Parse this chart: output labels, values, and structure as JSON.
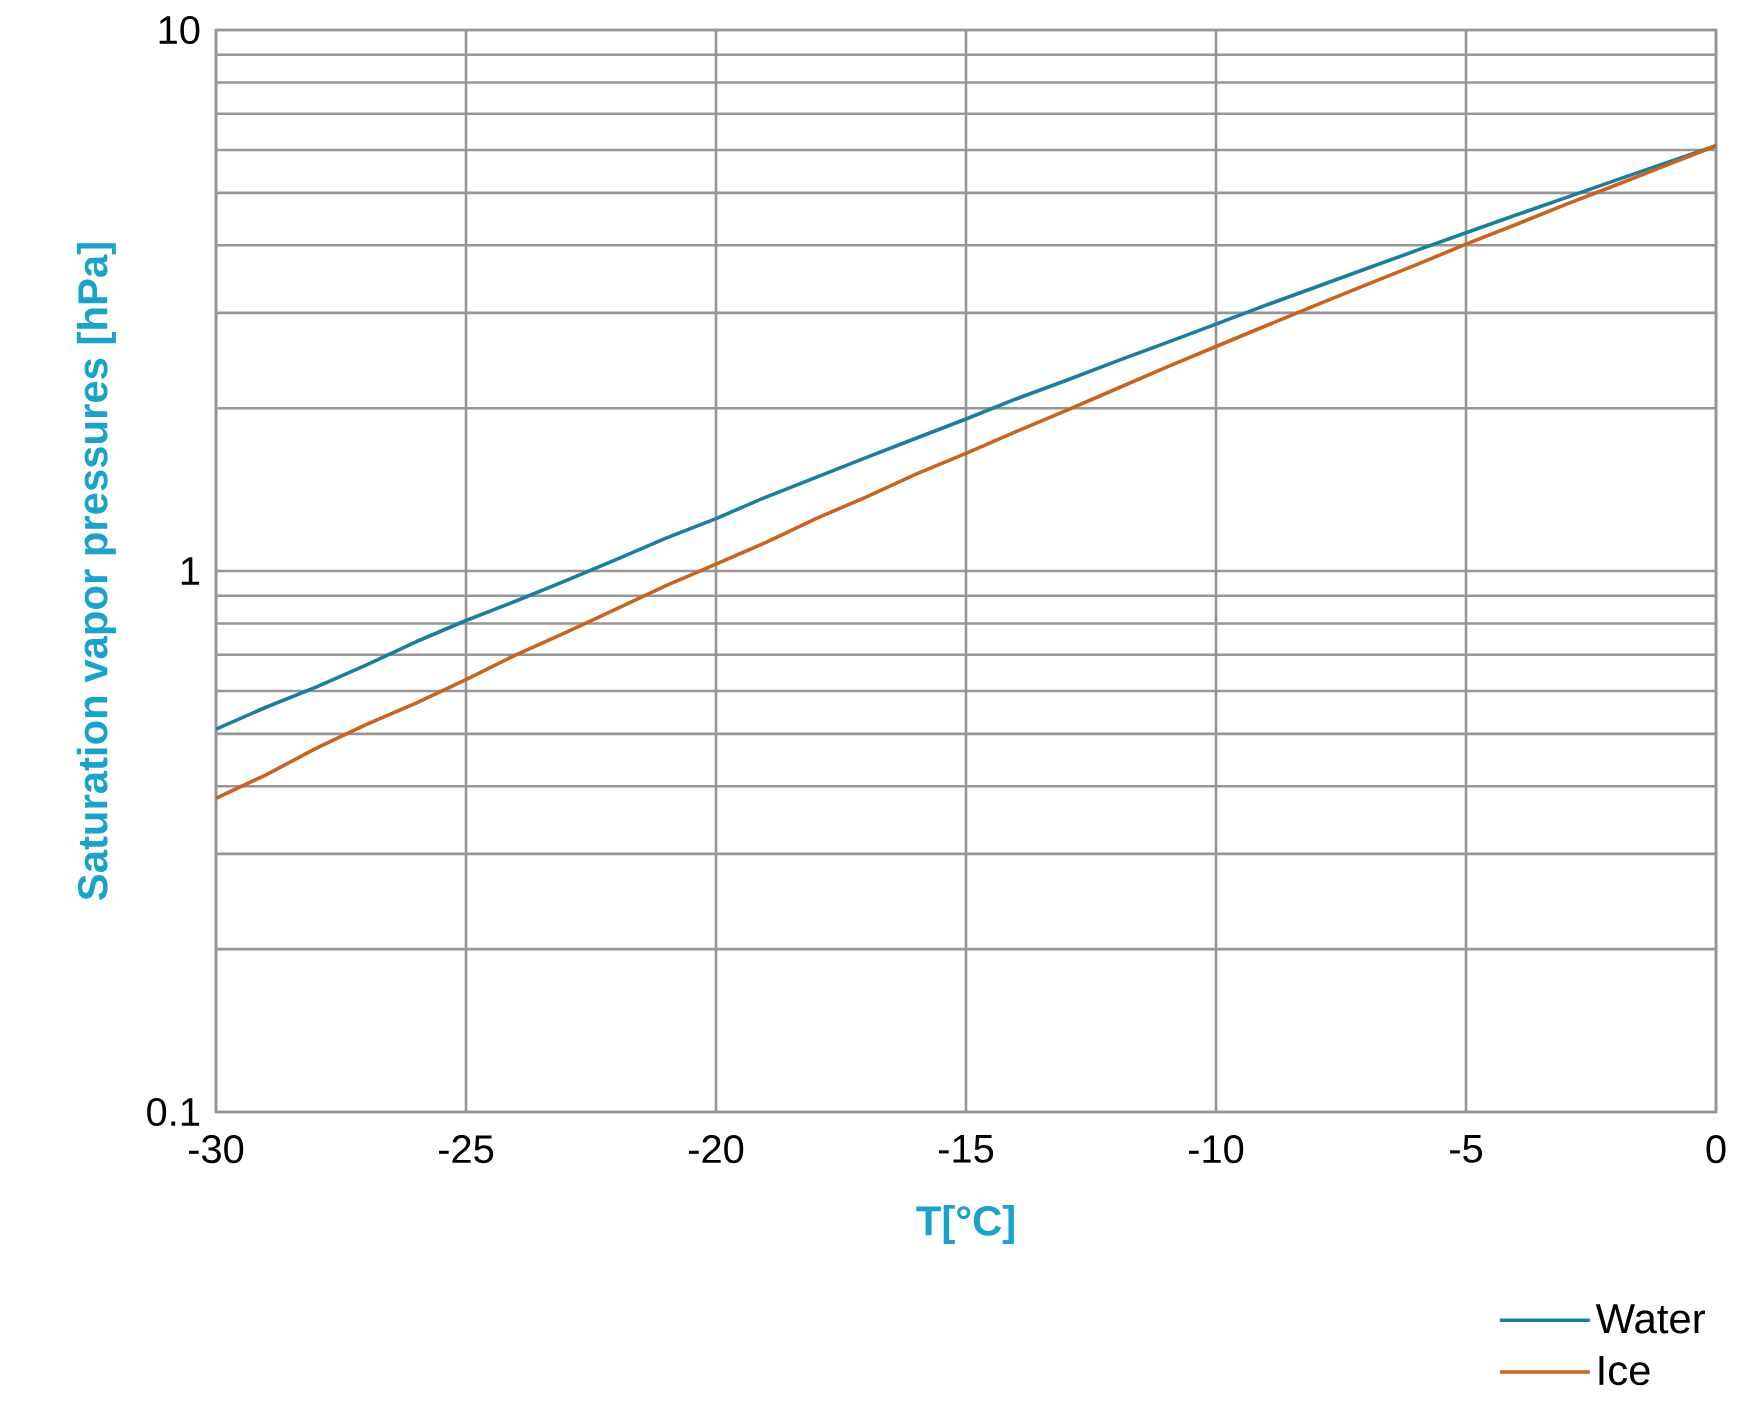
{
  "chart_data": {
    "type": "line",
    "xlabel": "T[°C]",
    "ylabel": "Saturation vapor pressures [hPa]",
    "x": [
      -30,
      -29,
      -28,
      -27,
      -26,
      -25,
      -24,
      -23,
      -22,
      -21,
      -20,
      -19,
      -18,
      -17,
      -16,
      -15,
      -14,
      -13,
      -12,
      -11,
      -10,
      -9,
      -8,
      -7,
      -6,
      -5,
      -4,
      -3,
      -2,
      -1,
      0
    ],
    "series": [
      {
        "name": "Water",
        "color": "#1a7f9c",
        "values": [
          0.51,
          0.56,
          0.61,
          0.67,
          0.74,
          0.81,
          0.88,
          0.96,
          1.05,
          1.15,
          1.25,
          1.37,
          1.49,
          1.62,
          1.76,
          1.91,
          2.08,
          2.25,
          2.44,
          2.64,
          2.86,
          3.1,
          3.35,
          3.62,
          3.91,
          4.22,
          4.55,
          4.9,
          5.28,
          5.68,
          6.11
        ]
      },
      {
        "name": "Ice",
        "color": "#c8641e",
        "values": [
          0.38,
          0.42,
          0.47,
          0.52,
          0.57,
          0.63,
          0.7,
          0.77,
          0.85,
          0.94,
          1.03,
          1.13,
          1.25,
          1.37,
          1.51,
          1.65,
          1.81,
          1.98,
          2.17,
          2.38,
          2.6,
          2.84,
          3.1,
          3.38,
          3.68,
          4.02,
          4.37,
          4.76,
          5.17,
          5.62,
          6.11
        ]
      }
    ],
    "xlim": [
      -30,
      0
    ],
    "xticks": [
      -30,
      -25,
      -20,
      -15,
      -10,
      -5,
      0
    ],
    "ylim": [
      0.1,
      10
    ],
    "yticks": [
      0.1,
      1,
      10
    ],
    "log": "y",
    "grid": true,
    "legend": "bottom right",
    "marker": "none",
    "line_style": "solid"
  }
}
